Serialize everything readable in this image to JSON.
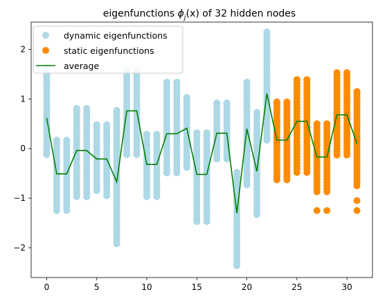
{
  "chart_data": {
    "type": "scatter",
    "title": "eigenfunctions ϕj(x) of 32 hidden nodes",
    "title_parts": {
      "pre": "eigenfunctions ",
      "phi": "ϕ",
      "sub": "j",
      "post": "(x) of 32 hidden nodes"
    },
    "xlim": [
      -1.55,
      32.55
    ],
    "ylim": [
      -2.6,
      2.55
    ],
    "xticks": [
      0,
      5,
      10,
      15,
      20,
      25,
      30
    ],
    "yticks": [
      -2,
      -1,
      0,
      1,
      2
    ],
    "xtick_labels": [
      "0",
      "5",
      "10",
      "15",
      "20",
      "25",
      "30"
    ],
    "ytick_labels": [
      "−2",
      "−1",
      "0",
      "1",
      "2"
    ],
    "legend": {
      "placement": "top-left",
      "entries": [
        "dynamic eigenfunctions",
        "static eigenfunctions",
        "average"
      ]
    },
    "colors": {
      "dynamic": "#add8e6",
      "static": "#ff8c00",
      "average": "#008000"
    },
    "series": [
      {
        "name": "dynamic eigenfunctions",
        "nodes": [
          0,
          1,
          2,
          3,
          4,
          5,
          6,
          7,
          8,
          9,
          10,
          11,
          12,
          13,
          14,
          15,
          16,
          17,
          18,
          19,
          20,
          21,
          22
        ],
        "ranges": [
          [
            -0.12,
            1.67
          ],
          [
            -1.25,
            0.17
          ],
          [
            -1.25,
            0.17
          ],
          [
            -0.97,
            0.81
          ],
          [
            -0.97,
            0.81
          ],
          [
            -0.85,
            0.48
          ],
          [
            -0.95,
            0.48
          ],
          [
            -1.92,
            0.77
          ],
          [
            -0.12,
            1.58
          ],
          [
            -0.12,
            1.58
          ],
          [
            -0.97,
            0.29
          ],
          [
            -0.97,
            0.29
          ],
          [
            -0.49,
            1.34
          ],
          [
            -0.49,
            1.34
          ],
          [
            -0.38,
            1.03
          ],
          [
            -1.47,
            0.32
          ],
          [
            -1.47,
            0.32
          ],
          [
            -0.21,
            0.92
          ],
          [
            -0.21,
            0.92
          ],
          [
            -2.36,
            -0.48
          ],
          [
            -0.73,
            1.34
          ],
          [
            -1.33,
            0.73
          ],
          [
            0.17,
            2.35
          ]
        ]
      },
      {
        "name": "static eigenfunctions",
        "nodes": [
          23,
          24,
          25,
          26,
          27,
          28,
          29,
          30,
          31
        ],
        "ranges": [
          [
            -0.63,
            0.94
          ],
          [
            -0.63,
            0.94
          ],
          [
            -0.48,
            1.39
          ],
          [
            -0.48,
            1.39
          ],
          [
            -0.87,
            0.5
          ],
          [
            -0.87,
            0.5
          ],
          [
            -0.13,
            1.53
          ],
          [
            -0.13,
            1.53
          ],
          [
            -0.75,
            1.15
          ]
        ],
        "outliers": [
          [
            27,
            -1.25
          ],
          [
            28,
            -1.25
          ],
          [
            31,
            -1.05
          ],
          [
            31,
            -1.25
          ]
        ]
      },
      {
        "name": "average",
        "x": [
          0,
          1,
          2,
          3,
          4,
          5,
          6,
          7,
          8,
          9,
          10,
          11,
          12,
          13,
          14,
          15,
          16,
          17,
          18,
          19,
          20,
          21,
          22,
          23,
          24,
          25,
          26,
          27,
          28,
          29,
          30,
          31
        ],
        "y": [
          0.62,
          -0.51,
          -0.51,
          -0.04,
          -0.04,
          -0.21,
          -0.21,
          -0.67,
          0.76,
          0.76,
          -0.32,
          -0.32,
          0.3,
          0.3,
          0.41,
          -0.52,
          -0.52,
          0.31,
          0.31,
          -1.3,
          0.4,
          -0.46,
          1.11,
          0.17,
          0.17,
          0.55,
          0.55,
          -0.17,
          -0.17,
          0.68,
          0.68,
          0.1
        ]
      }
    ]
  }
}
